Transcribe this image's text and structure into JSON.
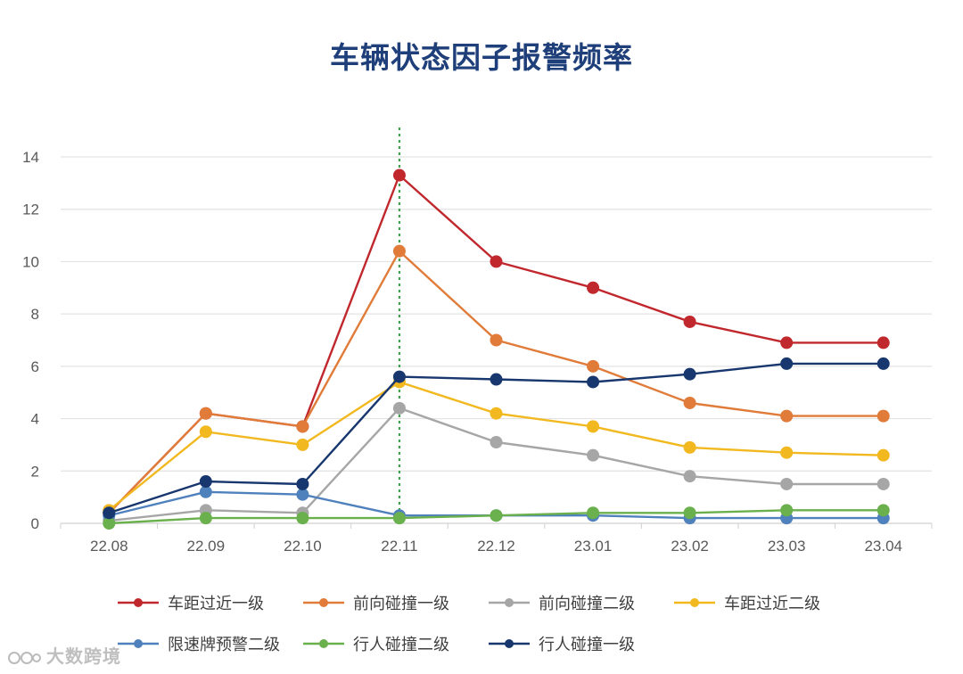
{
  "chart_data": {
    "type": "line",
    "title": "车辆状态因子报警频率",
    "categories": [
      "22.08",
      "22.09",
      "22.10",
      "22.11",
      "22.12",
      "23.01",
      "23.02",
      "23.03",
      "23.04"
    ],
    "ylim": [
      0,
      14
    ],
    "yticks": [
      0,
      2,
      4,
      6,
      8,
      10,
      12,
      14
    ],
    "grid": true,
    "highlight_category": "22.11",
    "legend_position": "bottom",
    "series": [
      {
        "name": "车距过近一级",
        "color": "#c0282d",
        "values": [
          0.4,
          4.2,
          3.7,
          13.3,
          10.0,
          9.0,
          7.7,
          6.9,
          6.9
        ]
      },
      {
        "name": "前向碰撞一级",
        "color": "#e07b39",
        "values": [
          0.4,
          4.2,
          3.7,
          10.4,
          7.0,
          6.0,
          4.6,
          4.1,
          4.1
        ]
      },
      {
        "name": "前向碰撞二级",
        "color": "#a6a6a6",
        "values": [
          0.1,
          0.5,
          0.4,
          4.4,
          3.1,
          2.6,
          1.8,
          1.5,
          1.5
        ]
      },
      {
        "name": "车距过近二级",
        "color": "#f2b81f",
        "values": [
          0.5,
          3.5,
          3.0,
          5.4,
          4.2,
          3.7,
          2.9,
          2.7,
          2.6
        ]
      },
      {
        "name": "限速牌预警二级",
        "color": "#4f81bd",
        "values": [
          0.3,
          1.2,
          1.1,
          0.3,
          0.3,
          0.3,
          0.2,
          0.2,
          0.2
        ]
      },
      {
        "name": "行人碰撞二级",
        "color": "#6ab04c",
        "values": [
          0.0,
          0.2,
          0.2,
          0.2,
          0.3,
          0.4,
          0.4,
          0.5,
          0.5
        ]
      },
      {
        "name": "行人碰撞一级",
        "color": "#17376e",
        "values": [
          0.4,
          1.6,
          1.5,
          5.6,
          5.5,
          5.4,
          5.7,
          6.1,
          6.1
        ]
      }
    ]
  },
  "watermark": "大数跨境"
}
